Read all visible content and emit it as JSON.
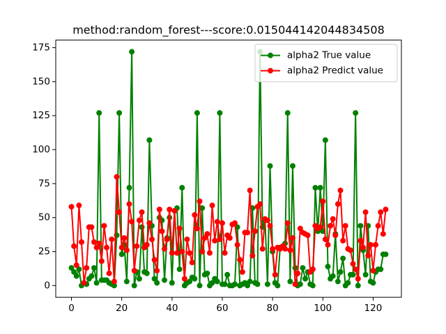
{
  "chart_data": {
    "type": "line",
    "title": "method:random_forest---score:0.015044142044834508",
    "x": [
      0,
      1,
      2,
      3,
      4,
      5,
      6,
      7,
      8,
      9,
      10,
      11,
      12,
      13,
      14,
      15,
      16,
      17,
      18,
      19,
      20,
      21,
      22,
      23,
      24,
      25,
      26,
      27,
      28,
      29,
      30,
      31,
      32,
      33,
      34,
      35,
      36,
      37,
      38,
      39,
      40,
      41,
      42,
      43,
      44,
      45,
      46,
      47,
      48,
      49,
      50,
      51,
      52,
      53,
      54,
      55,
      56,
      57,
      58,
      59,
      60,
      61,
      62,
      63,
      64,
      65,
      66,
      67,
      68,
      69,
      70,
      71,
      72,
      73,
      74,
      75,
      76,
      77,
      78,
      79,
      80,
      81,
      82,
      83,
      84,
      85,
      86,
      87,
      88,
      89,
      90,
      91,
      92,
      93,
      94,
      95,
      96,
      97,
      98,
      99,
      100,
      101,
      102,
      103,
      104,
      105,
      106,
      107,
      108,
      109,
      110,
      111,
      112,
      113,
      114,
      115,
      116,
      117,
      118,
      119,
      120,
      121,
      122,
      123,
      124,
      125
    ],
    "series": [
      {
        "name": "alpha2 True value",
        "color": "green",
        "values": [
          13,
          10,
          7,
          12,
          0,
          2,
          1,
          5,
          7,
          13,
          2,
          127,
          4,
          4,
          4,
          2,
          1,
          0,
          37,
          127,
          23,
          30,
          3,
          72,
          172,
          0,
          10,
          5,
          43,
          10,
          9,
          107,
          44,
          5,
          2,
          50,
          48,
          4,
          35,
          50,
          2,
          55,
          57,
          12,
          72,
          0,
          2,
          3,
          6,
          5,
          127,
          0,
          57,
          8,
          9,
          0,
          2,
          5,
          3,
          127,
          1,
          1,
          8,
          0,
          0,
          1,
          43,
          0,
          1,
          2,
          0,
          3,
          57,
          2,
          1,
          172,
          43,
          48,
          1,
          88,
          25,
          2,
          0,
          28,
          28,
          31,
          127,
          3,
          88,
          13,
          0,
          1,
          13,
          5,
          10,
          1,
          0,
          72,
          40,
          72,
          40,
          107,
          14,
          5,
          7,
          38,
          3,
          10,
          20,
          0,
          2,
          8,
          8,
          127,
          0,
          44,
          26,
          8,
          44,
          3,
          2,
          10,
          12,
          12,
          23,
          23
        ]
      },
      {
        "name": "alpha2 Predict value",
        "color": "red",
        "values": [
          58,
          29,
          15,
          59,
          32,
          2,
          13,
          43,
          43,
          32,
          28,
          31,
          18,
          44,
          28,
          9,
          34,
          3,
          80,
          54,
          28,
          35,
          26,
          60,
          47,
          11,
          29,
          48,
          54,
          28,
          30,
          46,
          34,
          19,
          11,
          56,
          40,
          27,
          34,
          56,
          24,
          55,
          24,
          42,
          25,
          5,
          34,
          24,
          17,
          52,
          42,
          62,
          25,
          35,
          38,
          24,
          59,
          33,
          47,
          34,
          46,
          24,
          37,
          35,
          45,
          46,
          30,
          19,
          10,
          39,
          39,
          70,
          22,
          40,
          58,
          60,
          27,
          49,
          48,
          44,
          27,
          8,
          28,
          27,
          29,
          27,
          46,
          26,
          35,
          1,
          9,
          42,
          39,
          38,
          37,
          10,
          12,
          44,
          42,
          43,
          62,
          34,
          30,
          44,
          49,
          37,
          60,
          70,
          33,
          44,
          27,
          26,
          16,
          12,
          5,
          33,
          28,
          54,
          22,
          30,
          11,
          30,
          44,
          54,
          38,
          56
        ]
      }
    ],
    "xlim": [
      -6.25,
      131.25
    ],
    "xticks": [
      0,
      20,
      40,
      60,
      80,
      100,
      120
    ],
    "ylim": [
      -8.6,
      180.6
    ],
    "yticks": [
      0,
      25,
      50,
      75,
      100,
      125,
      150,
      175
    ],
    "legend": "upper right"
  }
}
